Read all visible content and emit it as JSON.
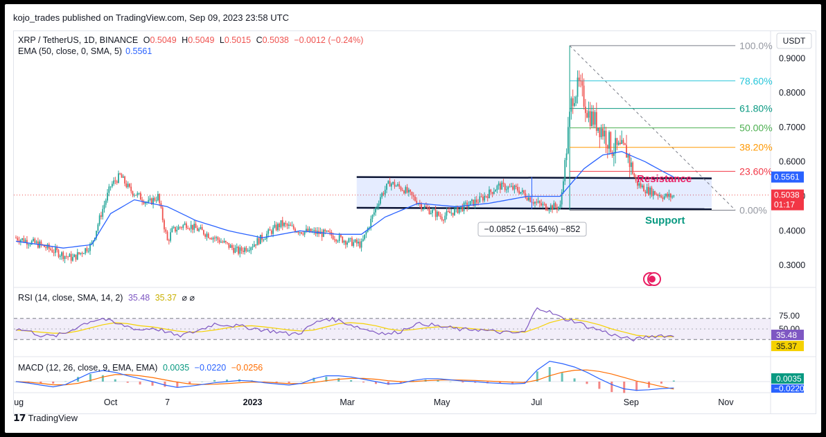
{
  "header": {
    "publisher": "kojo_trades published on TradingView.com, Sep 09, 2023 23:58 UTC",
    "symbol": "XRP / TetherUS, 1D, BINANCE",
    "ohlc": {
      "o_label": "O",
      "o": "0.5049",
      "h_label": "H",
      "h": "0.5049",
      "l_label": "L",
      "l": "0.5015",
      "c_label": "C",
      "c": "0.5038",
      "change": "−0.0012 (−0.24%)"
    },
    "ema_label": "EMA (50, close, 0, SMA, 5)",
    "ema_value": "0.5561",
    "currency": "USDT"
  },
  "colors": {
    "up": "#26a69a",
    "down": "#ef5350",
    "ema": "#2962ff",
    "rsi": "#7e57c2",
    "rsi_ma": "#f5d100",
    "macd": "#2962ff",
    "signal": "#ff6d00",
    "resistance": "#e91e63",
    "support": "#089981"
  },
  "annotations": {
    "resistance": "Resistance",
    "support": "Support",
    "measure": "−0.0852 (−15.64%) −852"
  },
  "price_badges": {
    "ema": "0.5561",
    "last": "0.5038",
    "countdown": "01:17"
  },
  "fib_labels": [
    "100.0%",
    "78.60%",
    "61.80%",
    "50.00%",
    "38.20%",
    "23.60%",
    "0.00%"
  ],
  "rsi": {
    "label": "RSI (14, close, SMA, 14, 2)",
    "value": "35.48",
    "ma": "35.37",
    "ticks": [
      "75.00",
      "50.00"
    ]
  },
  "macd": {
    "label": "MACD (12, 26, close, 9, EMA, EMA)",
    "hist": "0.0035",
    "macd": "−0.0220",
    "signal": "−0.0256"
  },
  "footer": {
    "brand": "TradingView"
  },
  "chart_data": {
    "type": "candlestick",
    "title": "XRP / TetherUS, 1D, BINANCE",
    "ylabel": "USDT",
    "ylim": [
      0.24,
      0.975
    ],
    "y_ticks": [
      0.3,
      0.4,
      0.5,
      0.6,
      0.7,
      0.8,
      0.9
    ],
    "x_ticks": [
      "Aug",
      "Oct",
      "7",
      "2023",
      "Mar",
      "May",
      "Jul",
      "Sep",
      "Nov"
    ],
    "x_tick_months": [
      0,
      2,
      3.2,
      5,
      7,
      9,
      11,
      13,
      15
    ],
    "price_path": [
      [
        0,
        0.38
      ],
      [
        0.5,
        0.36
      ],
      [
        1.0,
        0.33
      ],
      [
        1.2,
        0.32
      ],
      [
        1.6,
        0.36
      ],
      [
        1.8,
        0.45
      ],
      [
        2.0,
        0.53
      ],
      [
        2.2,
        0.56
      ],
      [
        2.4,
        0.52
      ],
      [
        2.6,
        0.5
      ],
      [
        2.8,
        0.48
      ],
      [
        3.0,
        0.5
      ],
      [
        3.2,
        0.37
      ],
      [
        3.3,
        0.4
      ],
      [
        3.6,
        0.42
      ],
      [
        4.2,
        0.38
      ],
      [
        4.7,
        0.34
      ],
      [
        5.0,
        0.36
      ],
      [
        5.6,
        0.42
      ],
      [
        6.0,
        0.4
      ],
      [
        6.6,
        0.39
      ],
      [
        7.0,
        0.37
      ],
      [
        7.3,
        0.36
      ],
      [
        7.7,
        0.5
      ],
      [
        7.9,
        0.54
      ],
      [
        8.2,
        0.52
      ],
      [
        8.6,
        0.47
      ],
      [
        9.0,
        0.44
      ],
      [
        9.3,
        0.46
      ],
      [
        9.8,
        0.49
      ],
      [
        10.2,
        0.53
      ],
      [
        10.6,
        0.52
      ],
      [
        11.0,
        0.48
      ],
      [
        11.2,
        0.47
      ],
      [
        11.5,
        0.47
      ],
      [
        11.75,
        0.79
      ],
      [
        11.9,
        0.82
      ],
      [
        12.1,
        0.74
      ],
      [
        12.4,
        0.69
      ],
      [
        12.6,
        0.64
      ],
      [
        12.9,
        0.63
      ],
      [
        13.1,
        0.54
      ],
      [
        13.3,
        0.52
      ],
      [
        13.5,
        0.51
      ],
      [
        13.7,
        0.5
      ],
      [
        13.9,
        0.5
      ]
    ],
    "ema50_path": [
      [
        0,
        0.37
      ],
      [
        1.0,
        0.35
      ],
      [
        1.6,
        0.36
      ],
      [
        2.0,
        0.45
      ],
      [
        2.5,
        0.49
      ],
      [
        3.2,
        0.47
      ],
      [
        3.8,
        0.43
      ],
      [
        4.5,
        0.4
      ],
      [
        5.2,
        0.38
      ],
      [
        6.0,
        0.4
      ],
      [
        6.8,
        0.39
      ],
      [
        7.3,
        0.39
      ],
      [
        7.8,
        0.44
      ],
      [
        8.5,
        0.48
      ],
      [
        9.3,
        0.47
      ],
      [
        10.0,
        0.48
      ],
      [
        10.8,
        0.5
      ],
      [
        11.5,
        0.5
      ],
      [
        12.0,
        0.58
      ],
      [
        12.4,
        0.62
      ],
      [
        12.8,
        0.63
      ],
      [
        13.3,
        0.6
      ],
      [
        13.7,
        0.57
      ],
      [
        13.9,
        0.556
      ]
    ],
    "fibonacci": {
      "start_month": 11.7,
      "end_month": 15.2,
      "high": 0.937,
      "low": 0.46,
      "levels": [
        1.0,
        0.786,
        0.618,
        0.5,
        0.382,
        0.236,
        0.0
      ]
    },
    "range_box": {
      "start_month": 7.2,
      "end_month": 14.7,
      "top": 0.5561,
      "bottom": 0.4628
    },
    "rsi_series": [
      50,
      46,
      38,
      36,
      42,
      55,
      65,
      70,
      60,
      55,
      48,
      52,
      46,
      36,
      42,
      50,
      60,
      58,
      55,
      52,
      48,
      45,
      40,
      44,
      60,
      70,
      66,
      58,
      50,
      45,
      40,
      46,
      58,
      60,
      55,
      52,
      48,
      50,
      46,
      44,
      42,
      44,
      92,
      82,
      70,
      65,
      55,
      48,
      40,
      32,
      30,
      36,
      38,
      35.48
    ],
    "rsi_ma_series": [
      48,
      46,
      44,
      42,
      42,
      46,
      52,
      58,
      62,
      60,
      56,
      54,
      50,
      46,
      44,
      45,
      48,
      52,
      55,
      56,
      54,
      51,
      48,
      46,
      48,
      54,
      60,
      62,
      60,
      56,
      50,
      47,
      49,
      52,
      54,
      54,
      52,
      50,
      48,
      46,
      45,
      44,
      52,
      62,
      68,
      68,
      64,
      58,
      50,
      44,
      38,
      36,
      35.6,
      35.37
    ],
    "macd_series": [
      0.0,
      -0.005,
      -0.012,
      -0.018,
      -0.01,
      0.01,
      0.03,
      0.038,
      0.032,
      0.02,
      0.01,
      0.0,
      -0.012,
      -0.02,
      -0.016,
      -0.01,
      -0.004,
      0.0,
      0.004,
      0.002,
      -0.004,
      -0.008,
      -0.012,
      -0.006,
      0.01,
      0.02,
      0.02,
      0.016,
      0.008,
      0.0,
      -0.008,
      -0.006,
      0.004,
      0.01,
      0.01,
      0.006,
      0.002,
      0.0,
      -0.004,
      -0.006,
      -0.008,
      -0.006,
      0.04,
      0.07,
      0.062,
      0.05,
      0.032,
      0.01,
      -0.01,
      -0.025,
      -0.03,
      -0.028,
      -0.024,
      -0.022
    ],
    "signal_series": [
      0.0,
      -0.002,
      -0.006,
      -0.011,
      -0.011,
      -0.006,
      0.004,
      0.016,
      0.024,
      0.024,
      0.02,
      0.014,
      0.006,
      -0.002,
      -0.008,
      -0.01,
      -0.009,
      -0.007,
      -0.004,
      -0.002,
      -0.002,
      -0.004,
      -0.007,
      -0.007,
      -0.003,
      0.003,
      0.008,
      0.011,
      0.011,
      0.008,
      0.003,
      0.0,
      0.0,
      0.003,
      0.005,
      0.006,
      0.005,
      0.004,
      0.002,
      0.0,
      -0.002,
      -0.003,
      0.005,
      0.02,
      0.032,
      0.039,
      0.04,
      0.035,
      0.026,
      0.014,
      0.002,
      -0.007,
      -0.017,
      -0.0256
    ]
  }
}
